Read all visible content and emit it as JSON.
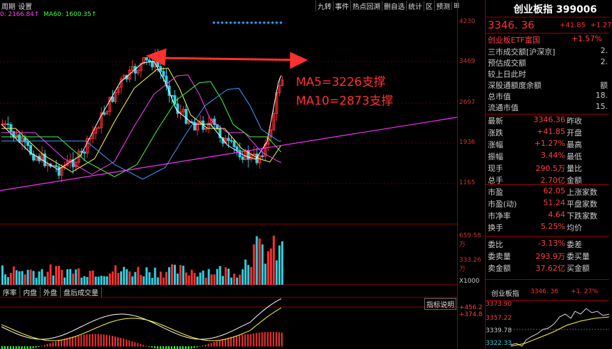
{
  "toolbar": {
    "left": [
      "周期",
      "设置"
    ],
    "right": [
      "九转",
      "事件",
      "热点回溯",
      "删自选",
      "统计",
      "区",
      "预测",
      "⊞"
    ]
  },
  "ma_legend": [
    {
      "text": "0: 2166.84↑",
      "color": "#ff40ff"
    },
    {
      "text": "MA60: 1600.35↑",
      "color": "#40ff40"
    }
  ],
  "price_axis": [
    "4230",
    "3469",
    "2697",
    "1936",
    "1165"
  ],
  "volume_axis": [
    "659.58万",
    "333.26万",
    "X1000"
  ],
  "macd_axis": [
    "+456.2",
    "+374.8"
  ],
  "annotations": {
    "ma5": "MA5=3226支撑",
    "ma10": "MA10=2873支撑"
  },
  "subtabs": [
    "序率",
    "内盘",
    "外盘",
    "盘后成交量"
  ],
  "indicator_btn": "指标说明",
  "panel": {
    "title": "创业板指 399006",
    "price": "3346. 36",
    "change": "+41.85",
    "change_pct": "+1.27",
    "etf_name": "创业板ETF富国",
    "etf_pct": "+1.57%",
    "info_rows": [
      {
        "label": "三市成交额[沪深京]",
        "value": "2."
      },
      {
        "label": "预估成交额",
        "value": "2."
      },
      {
        "label": "较上日此时",
        "value": ""
      },
      {
        "label": "深股通额度余额",
        "value": "额"
      },
      {
        "label": "总市值",
        "value": "18."
      },
      {
        "label": "流通市值",
        "value": "15."
      }
    ],
    "quote_rows": [
      {
        "l1": "最新",
        "v1": "3346.36",
        "l2": "昨收"
      },
      {
        "l1": "涨跌",
        "v1": "+41.85",
        "l2": "开盘"
      },
      {
        "l1": "涨幅",
        "v1": "+1.27%",
        "l2": "最高"
      },
      {
        "l1": "振幅",
        "v1": "3.44%",
        "l2": "最低"
      },
      {
        "l1": "现手",
        "v1": "290.5万",
        "l2": "量比"
      },
      {
        "l1": "总手",
        "v1": "2.70亿",
        "l2": "金额"
      }
    ],
    "val_rows": [
      {
        "l1": "市盈",
        "v1": "62.05",
        "l2": "上涨家数"
      },
      {
        "l1": "市盈(动)",
        "v1": "51.24",
        "l2": "平盘家数"
      },
      {
        "l1": "市净率",
        "v1": "4.64",
        "l2": "下跌家数"
      },
      {
        "l1": "换手",
        "v1": "5.25%",
        "l2": "均价"
      }
    ],
    "order_rows": [
      {
        "l1": "委比",
        "v1": "-3.13%",
        "l2": "委差"
      },
      {
        "l1": "委卖量",
        "v1": "293.9万",
        "l2": "委买量"
      },
      {
        "l1": "卖金额",
        "v1": "37.62亿",
        "l2": "买金额"
      }
    ],
    "mini": {
      "name": "创业板指",
      "price": "3346. 36",
      "pct": "+1. 27%",
      "axis": [
        "3373.90",
        "3357.22",
        "3339.78",
        "3322.33"
      ]
    }
  },
  "colors": {
    "up": "#ff3030",
    "down": "#30d0e0",
    "trend": "#ff30ff",
    "panel_border": "#990000"
  }
}
